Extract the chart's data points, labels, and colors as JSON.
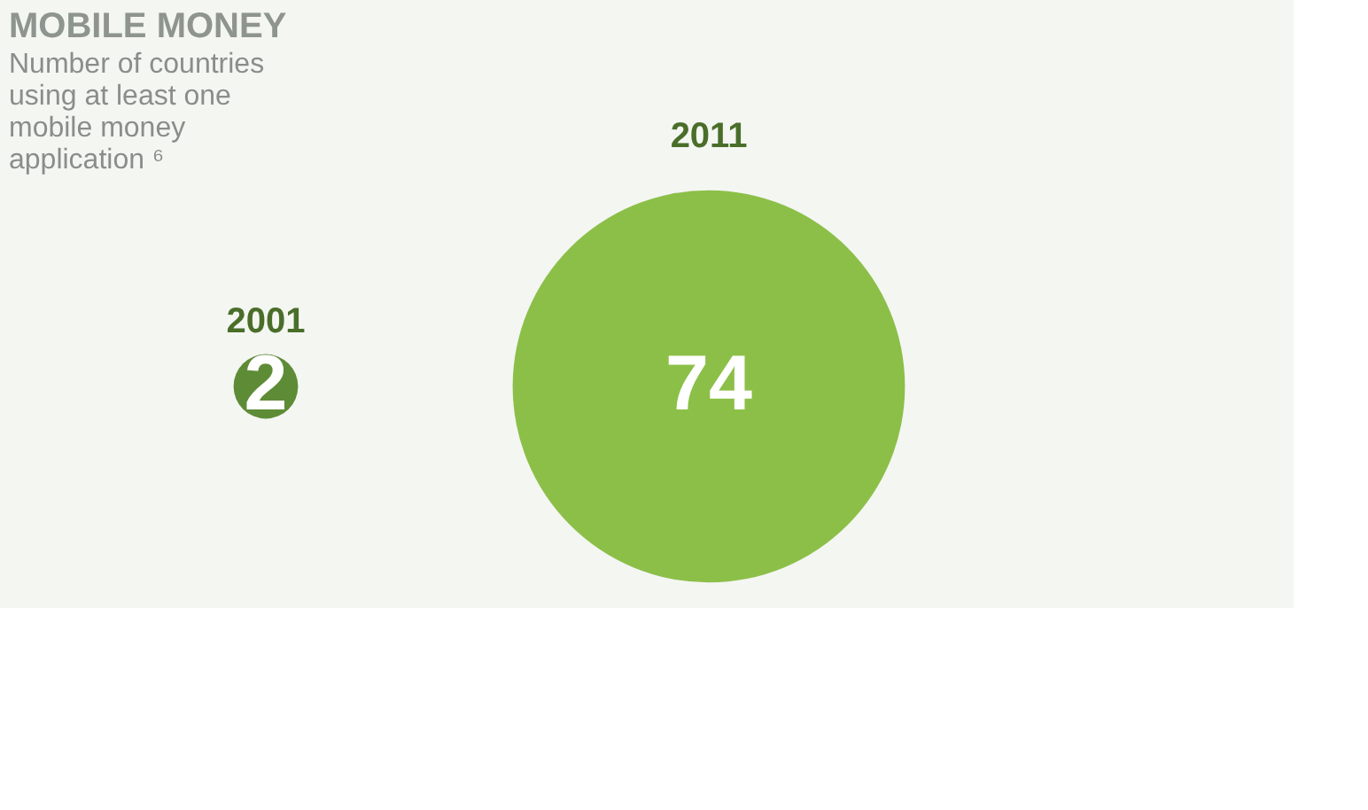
{
  "chart_data": {
    "type": "other",
    "title": "MOBILE MONEY",
    "subtitle": [
      "Number of countries",
      "using at least one",
      "mobile money",
      "application ⁶"
    ],
    "categories": [
      "2001",
      "2011"
    ],
    "values": [
      2,
      74
    ],
    "colors": [
      "#5e8c36",
      "#8cbf48"
    ],
    "data_labels": true
  }
}
